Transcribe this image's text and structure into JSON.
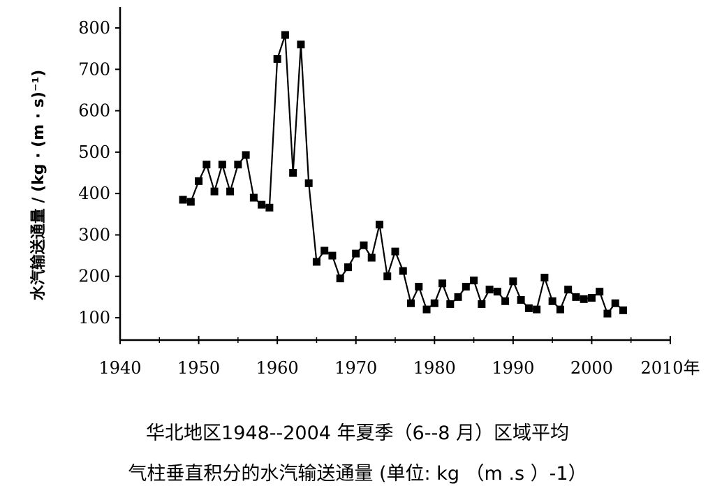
{
  "chart_data": {
    "type": "line",
    "ylabel": "水汽输送通量 / (kg · (m · s)⁻¹)",
    "xunit": "年",
    "xlim": [
      1940,
      2010
    ],
    "ylim": [
      100,
      800
    ],
    "xticks": [
      1940,
      1950,
      1960,
      1970,
      1980,
      1990,
      2000,
      2010
    ],
    "xtick_labels": [
      "1940",
      "1950",
      "1960",
      "1970",
      "1980",
      "1990",
      "2000",
      "2010年"
    ],
    "yticks": [
      100,
      200,
      300,
      400,
      500,
      600,
      700,
      800
    ],
    "grid": false,
    "series": [
      {
        "x": [
          1948,
          1949,
          1950,
          1951,
          1952,
          1953,
          1954,
          1955,
          1956,
          1957,
          1958,
          1959,
          1960,
          1961,
          1962,
          1963,
          1964,
          1965,
          1966,
          1967,
          1968,
          1969,
          1970,
          1971,
          1972,
          1973,
          1974,
          1975,
          1976,
          1977,
          1978,
          1979,
          1980,
          1981,
          1982,
          1983,
          1984,
          1985,
          1986,
          1987,
          1988,
          1989,
          1990,
          1991,
          1992,
          1993,
          1994,
          1995,
          1996,
          1997,
          1998,
          1999,
          2000,
          2001,
          2002,
          2003,
          2004
        ],
        "values": [
          385,
          380,
          430,
          470,
          405,
          470,
          405,
          470,
          493,
          390,
          373,
          366,
          725,
          783,
          450,
          760,
          425,
          235,
          262,
          250,
          195,
          222,
          255,
          275,
          245,
          325,
          200,
          260,
          213,
          135,
          175,
          120,
          135,
          183,
          133,
          150,
          175,
          190,
          133,
          168,
          163,
          140,
          188,
          143,
          123,
          120,
          197,
          140,
          120,
          168,
          150,
          145,
          148,
          163,
          110,
          135,
          118
        ]
      }
    ]
  },
  "caption": {
    "line1": "华北地区1948--2004 年夏季（6--8 月）区域平均",
    "line2": "气柱垂直积分的水汽输送通量 (单位: kg （m .s ）-1）"
  }
}
